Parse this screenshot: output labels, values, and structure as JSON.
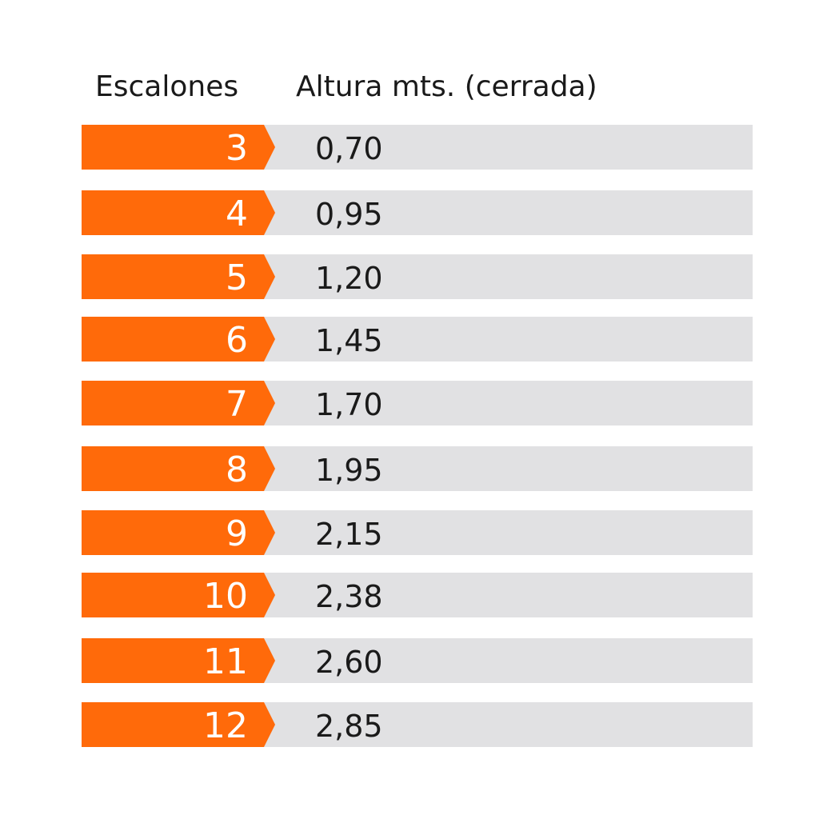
{
  "headers": {
    "steps": "Escalones",
    "height": "Altura mts. (cerrada)"
  },
  "colors": {
    "accent": "#ff6a0a",
    "row_background": "#e1e1e3",
    "text": "#1a1a1a"
  },
  "rows": [
    {
      "steps": "3",
      "height": "0,70"
    },
    {
      "steps": "4",
      "height": "0,95"
    },
    {
      "steps": "5",
      "height": "1,20"
    },
    {
      "steps": "6",
      "height": "1,45"
    },
    {
      "steps": "7",
      "height": "1,70"
    },
    {
      "steps": "8",
      "height": "1,95"
    },
    {
      "steps": "9",
      "height": "2,15"
    },
    {
      "steps": "10",
      "height": "2,38"
    },
    {
      "steps": "11",
      "height": "2,60"
    },
    {
      "steps": "12",
      "height": "2,85"
    }
  ]
}
